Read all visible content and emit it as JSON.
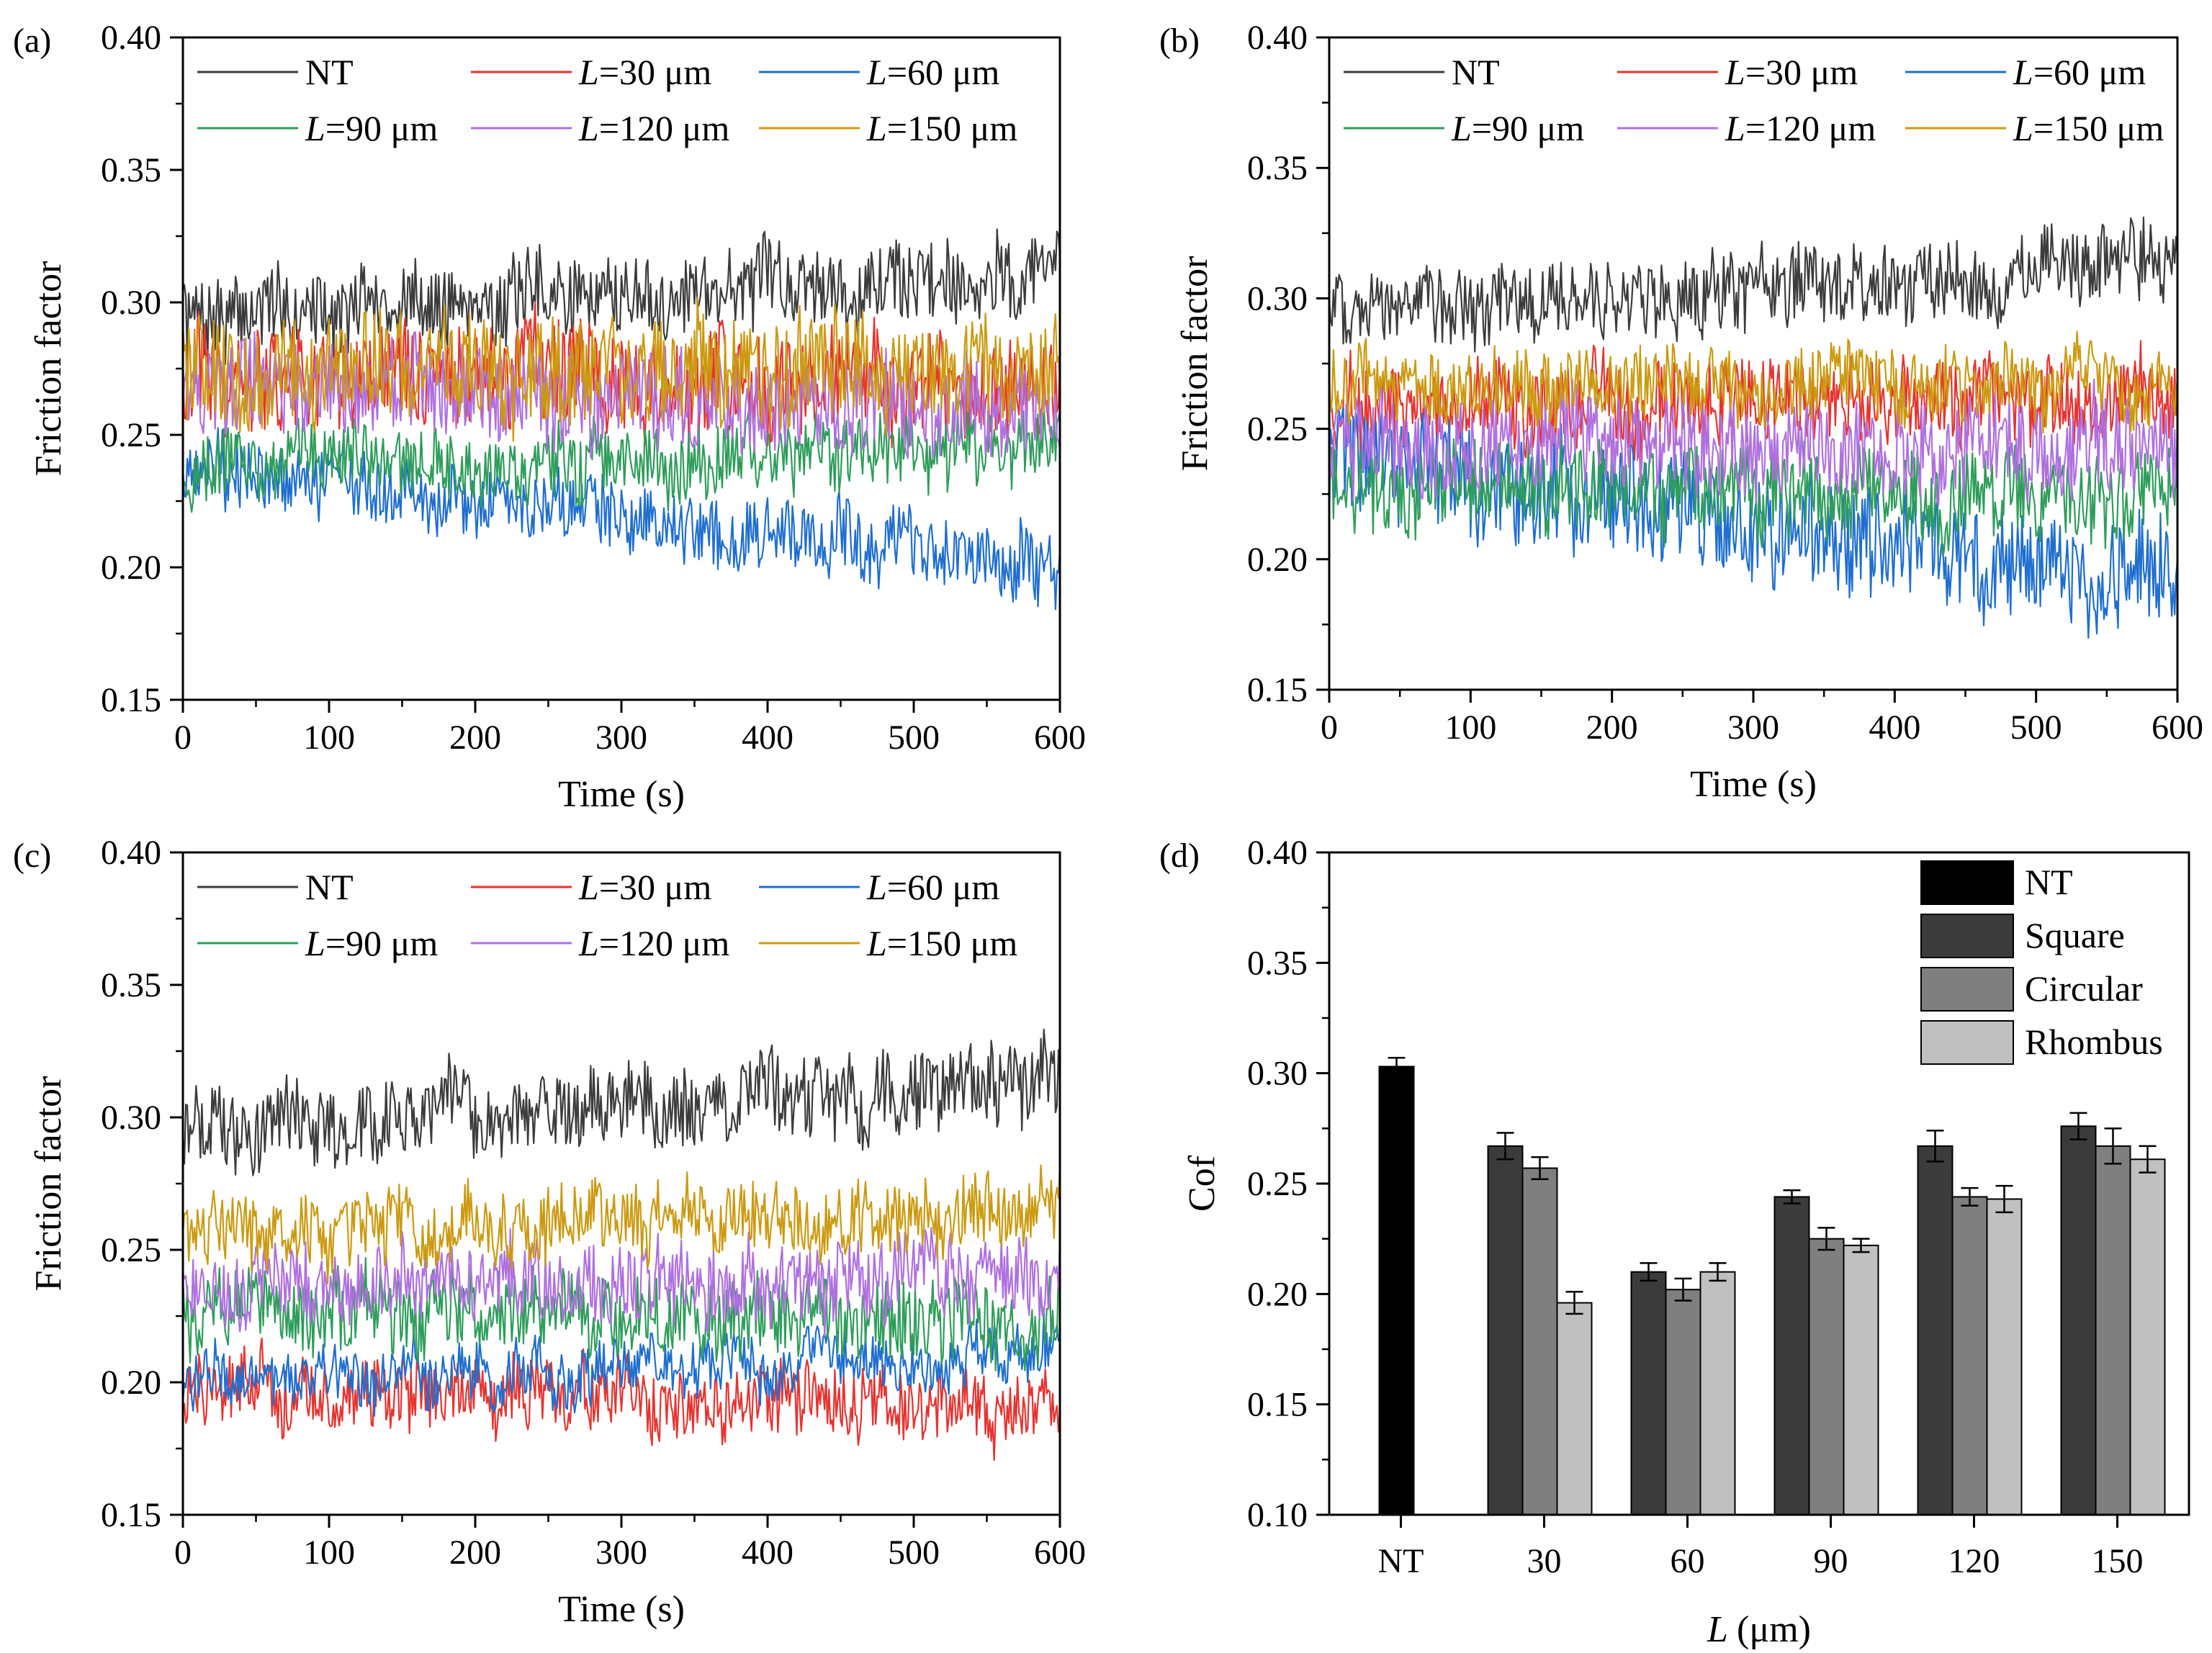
{
  "panels_line": [
    {
      "panel_label": "(a)",
      "ylabel": "Friction factor",
      "xlabel": "Time (s)",
      "x_ticks": [
        "0",
        "100",
        "200",
        "300",
        "400",
        "500",
        "600"
      ],
      "y_ticks": [
        "0.15",
        "0.20",
        "0.25",
        "0.30",
        "0.35",
        "0.40"
      ],
      "legend": [
        "NT",
        "=30 μm",
        "=60 μm",
        "=90 μm",
        "=120 μm",
        "=150 μm"
      ]
    },
    {
      "panel_label": "(b)",
      "ylabel": "Friction factor",
      "xlabel": "Time (s)",
      "x_ticks": [
        "0",
        "100",
        "200",
        "300",
        "400",
        "500",
        "600"
      ],
      "y_ticks": [
        "0.15",
        "0.20",
        "0.25",
        "0.30",
        "0.35",
        "0.40"
      ],
      "legend": [
        "NT",
        "=30 μm",
        "=60 μm",
        "=90 μm",
        "=120 μm",
        "=150 μm"
      ]
    },
    {
      "panel_label": "(c)",
      "ylabel": "Friction factor",
      "xlabel": "Time (s)",
      "x_ticks": [
        "0",
        "100",
        "200",
        "300",
        "400",
        "500",
        "600"
      ],
      "y_ticks": [
        "0.15",
        "0.20",
        "0.25",
        "0.30",
        "0.35",
        "0.40"
      ],
      "legend": [
        "NT",
        "=30 μm",
        "=60 μm",
        "=90 μm",
        "=120 μm",
        "=150 μm"
      ]
    }
  ],
  "panel_bar": {
    "panel_label": "(d)",
    "ylabel": "Cof",
    "xlabel_unit": "(μm)",
    "x_ticks": [
      "NT",
      "30",
      "60",
      "90",
      "120",
      "150"
    ],
    "y_ticks": [
      "0.10",
      "0.15",
      "0.20",
      "0.25",
      "0.30",
      "0.35",
      "0.40"
    ],
    "legend": [
      "NT",
      "Square",
      "Circular",
      "Rhombus"
    ]
  },
  "chart_data": [
    {
      "type": "line",
      "panel": "(a)",
      "xlabel": "Time (s)",
      "ylabel": "Friction factor",
      "xlim": [
        0,
        600
      ],
      "ylim": [
        0.15,
        0.4
      ],
      "series": [
        {
          "name": "NT",
          "color": "#3c3c3c",
          "start": 0.295,
          "end": 0.312,
          "noise": 0.018
        },
        {
          "name": "L=30 μm",
          "color": "#e8332f",
          "start": 0.272,
          "end": 0.268,
          "noise": 0.024
        },
        {
          "name": "L=60 μm",
          "color": "#1f6fd0",
          "start": 0.238,
          "end": 0.2,
          "noise": 0.016
        },
        {
          "name": "L=90 μm",
          "color": "#2e9e5a",
          "start": 0.238,
          "end": 0.245,
          "noise": 0.016
        },
        {
          "name": "L=120 μm",
          "color": "#b070e0",
          "start": 0.27,
          "end": 0.258,
          "noise": 0.022
        },
        {
          "name": "L=150 μm",
          "color": "#cc9a10",
          "start": 0.275,
          "end": 0.275,
          "noise": 0.024
        }
      ]
    },
    {
      "type": "line",
      "panel": "(b)",
      "xlabel": "Time (s)",
      "ylabel": "Friction factor",
      "xlim": [
        0,
        600
      ],
      "ylim": [
        0.15,
        0.4
      ],
      "series": [
        {
          "name": "NT",
          "color": "#3c3c3c",
          "start": 0.295,
          "end": 0.312,
          "noise": 0.018
        },
        {
          "name": "L=30 μm",
          "color": "#e8332f",
          "start": 0.258,
          "end": 0.262,
          "noise": 0.02
        },
        {
          "name": "L=60 μm",
          "color": "#1f6fd0",
          "start": 0.238,
          "end": 0.192,
          "noise": 0.026
        },
        {
          "name": "L=90 μm",
          "color": "#2e9e5a",
          "start": 0.228,
          "end": 0.224,
          "noise": 0.02
        },
        {
          "name": "L=120 μm",
          "color": "#b070e0",
          "start": 0.245,
          "end": 0.242,
          "noise": 0.022
        },
        {
          "name": "L=150 μm",
          "color": "#cc9a10",
          "start": 0.266,
          "end": 0.268,
          "noise": 0.016
        }
      ]
    },
    {
      "type": "line",
      "panel": "(c)",
      "xlabel": "Time (s)",
      "ylabel": "Friction factor",
      "xlim": [
        0,
        600
      ],
      "ylim": [
        0.15,
        0.4
      ],
      "series": [
        {
          "name": "NT",
          "color": "#3c3c3c",
          "start": 0.295,
          "end": 0.312,
          "noise": 0.018
        },
        {
          "name": "L=30 μm",
          "color": "#e8332f",
          "start": 0.198,
          "end": 0.19,
          "noise": 0.016
        },
        {
          "name": "L=60 μm",
          "color": "#1f6fd0",
          "start": 0.2,
          "end": 0.21,
          "noise": 0.012
        },
        {
          "name": "L=90 μm",
          "color": "#2e9e5a",
          "start": 0.228,
          "end": 0.222,
          "noise": 0.018
        },
        {
          "name": "L=120 μm",
          "color": "#b070e0",
          "start": 0.235,
          "end": 0.24,
          "noise": 0.018
        },
        {
          "name": "L=150 μm",
          "color": "#cc9a10",
          "start": 0.255,
          "end": 0.265,
          "noise": 0.016
        }
      ]
    },
    {
      "type": "bar",
      "panel": "(d)",
      "xlabel": "L (μm)",
      "ylabel": "Cof",
      "ylim": [
        0.1,
        0.4
      ],
      "categories": [
        "NT",
        "30",
        "60",
        "90",
        "120",
        "150"
      ],
      "series": [
        {
          "name": "NT",
          "color": "#000000",
          "values": [
            0.303,
            null,
            null,
            null,
            null,
            null
          ],
          "errors": [
            0.004,
            null,
            null,
            null,
            null,
            null
          ]
        },
        {
          "name": "Square",
          "color": "#3b3b3b",
          "values": [
            null,
            0.267,
            0.21,
            0.244,
            0.267,
            0.276
          ],
          "errors": [
            null,
            0.006,
            0.004,
            0.003,
            0.007,
            0.006
          ]
        },
        {
          "name": "Circular",
          "color": "#7f7f7f",
          "values": [
            null,
            0.257,
            0.202,
            0.225,
            0.244,
            0.267
          ],
          "errors": [
            null,
            0.005,
            0.005,
            0.005,
            0.004,
            0.008
          ]
        },
        {
          "name": "Rhombus",
          "color": "#c0c0c0",
          "values": [
            null,
            0.196,
            0.21,
            0.222,
            0.243,
            0.261
          ],
          "errors": [
            null,
            0.005,
            0.004,
            0.003,
            0.006,
            0.006
          ]
        }
      ]
    }
  ]
}
